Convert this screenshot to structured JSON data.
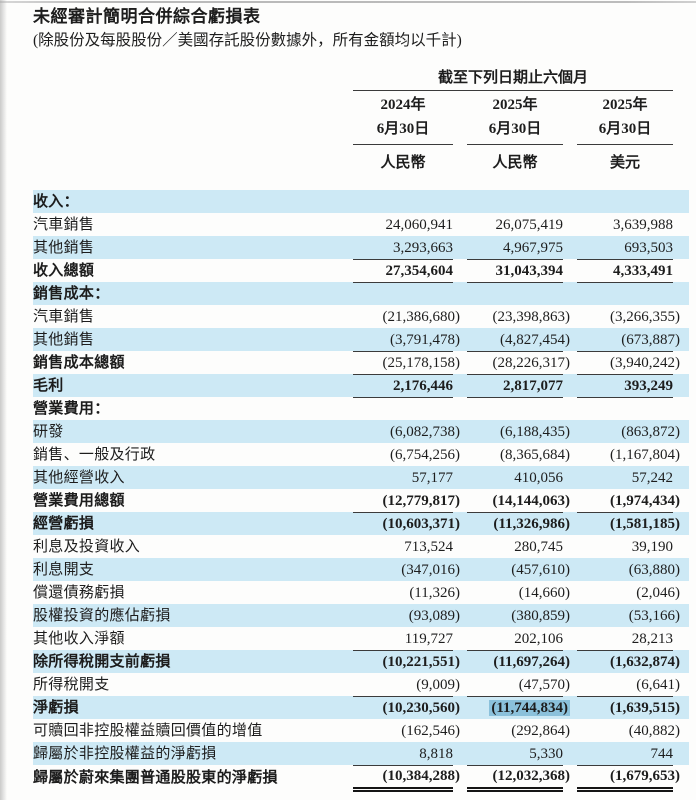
{
  "page": {
    "title": "未經審計簡明合併綜合虧損表",
    "subtitle": "(除股份及每股股份／美國存託股份數據外，所有金額均以千計)"
  },
  "table": {
    "period_header": "截至下列日期止六個月",
    "columns": [
      {
        "year": "2024年",
        "date": "6月30日",
        "currency": "人民幣"
      },
      {
        "year": "2025年",
        "date": "6月30日",
        "currency": "人民幣"
      },
      {
        "year": "2025年",
        "date": "6月30日",
        "currency": "美元"
      }
    ],
    "rows": [
      {
        "label": "收入：",
        "section": true,
        "bold_label": true,
        "shade": true,
        "values": [
          "",
          "",
          ""
        ]
      },
      {
        "label": "汽車銷售",
        "shade": false,
        "values": [
          "24,060,941",
          "26,075,419",
          "3,639,988"
        ]
      },
      {
        "label": "其他銷售",
        "shade": true,
        "underline": true,
        "values": [
          "3,293,663",
          "4,967,975",
          "693,503"
        ]
      },
      {
        "label": "收入總額",
        "bold_label": true,
        "bold_values": true,
        "shade": false,
        "underline": true,
        "values": [
          "27,354,604",
          "31,043,394",
          "4,333,491"
        ]
      },
      {
        "label": "銷售成本：",
        "section": true,
        "bold_label": true,
        "shade": true,
        "values": [
          "",
          "",
          ""
        ]
      },
      {
        "label": "汽車銷售",
        "shade": false,
        "values": [
          "(21,386,680)",
          "(23,398,863)",
          "(3,266,355)"
        ]
      },
      {
        "label": "其他銷售",
        "shade": true,
        "underline": true,
        "values": [
          "(3,791,478)",
          "(4,827,454)",
          "(673,887)"
        ]
      },
      {
        "label": "銷售成本總額",
        "bold_label": true,
        "shade": false,
        "underline": true,
        "values": [
          "(25,178,158)",
          "(28,226,317)",
          "(3,940,242)"
        ]
      },
      {
        "label": "毛利",
        "bold_label": true,
        "bold_values": true,
        "shade": true,
        "underline": true,
        "values": [
          "2,176,446",
          "2,817,077",
          "393,249"
        ]
      },
      {
        "label": "營業費用：",
        "section": true,
        "bold_label": true,
        "shade": false,
        "values": [
          "",
          "",
          ""
        ]
      },
      {
        "label": "研發",
        "shade": true,
        "values": [
          "(6,082,738)",
          "(6,188,435)",
          "(863,872)"
        ]
      },
      {
        "label": "銷售、一般及行政",
        "shade": false,
        "values": [
          "(6,754,256)",
          "(8,365,684)",
          "(1,167,804)"
        ]
      },
      {
        "label": "其他經營收入",
        "shade": true,
        "values": [
          "57,177",
          "410,056",
          "57,242"
        ]
      },
      {
        "label": "營業費用總額",
        "bold_label": true,
        "bold_values": true,
        "shade": false,
        "underline": true,
        "values": [
          "(12,779,817)",
          "(14,144,063)",
          "(1,974,434)"
        ]
      },
      {
        "label": "經營虧損",
        "bold_label": true,
        "bold_values": true,
        "shade": true,
        "values": [
          "(10,603,371)",
          "(11,326,986)",
          "(1,581,185)"
        ]
      },
      {
        "label": "利息及投資收入",
        "shade": false,
        "values": [
          "713,524",
          "280,745",
          "39,190"
        ]
      },
      {
        "label": "利息開支",
        "shade": true,
        "values": [
          "(347,016)",
          "(457,610)",
          "(63,880)"
        ]
      },
      {
        "label": "償還債務虧損",
        "shade": false,
        "values": [
          "(11,326)",
          "(14,660)",
          "(2,046)"
        ]
      },
      {
        "label": "股權投資的應佔虧損",
        "shade": true,
        "values": [
          "(93,089)",
          "(380,859)",
          "(53,166)"
        ]
      },
      {
        "label": "其他收入淨額",
        "shade": false,
        "underline": true,
        "values": [
          "119,727",
          "202,106",
          "28,213"
        ]
      },
      {
        "label": "除所得稅開支前虧損",
        "bold_label": true,
        "bold_values": true,
        "shade": true,
        "values": [
          "(10,221,551)",
          "(11,697,264)",
          "(1,632,874)"
        ]
      },
      {
        "label": "所得稅開支",
        "shade": false,
        "underline": true,
        "values": [
          "(9,009)",
          "(47,570)",
          "(6,641)"
        ]
      },
      {
        "label": "淨虧損",
        "bold_label": true,
        "bold_values": true,
        "shade": true,
        "highlight_col": 1,
        "values": [
          "(10,230,560)",
          "(11,744,834)",
          "(1,639,515)"
        ]
      },
      {
        "label": "可贖回非控股權益贖回價值的增值",
        "shade": false,
        "values": [
          "(162,546)",
          "(292,864)",
          "(40,882)"
        ]
      },
      {
        "label": "歸屬於非控股權益的淨虧損",
        "shade": true,
        "underline": true,
        "values": [
          "8,818",
          "5,330",
          "744"
        ]
      },
      {
        "label": "歸屬於蔚來集團普通股股東的淨虧損",
        "bold_label": true,
        "bold_values": true,
        "shade": false,
        "double_underline": true,
        "values": [
          "(10,384,288)",
          "(12,032,368)",
          "(1,679,653)"
        ]
      }
    ]
  },
  "colors": {
    "row_shade": "#cde9f5",
    "cell_highlight": "#8bc1db",
    "rule": "#3b3b3b"
  }
}
